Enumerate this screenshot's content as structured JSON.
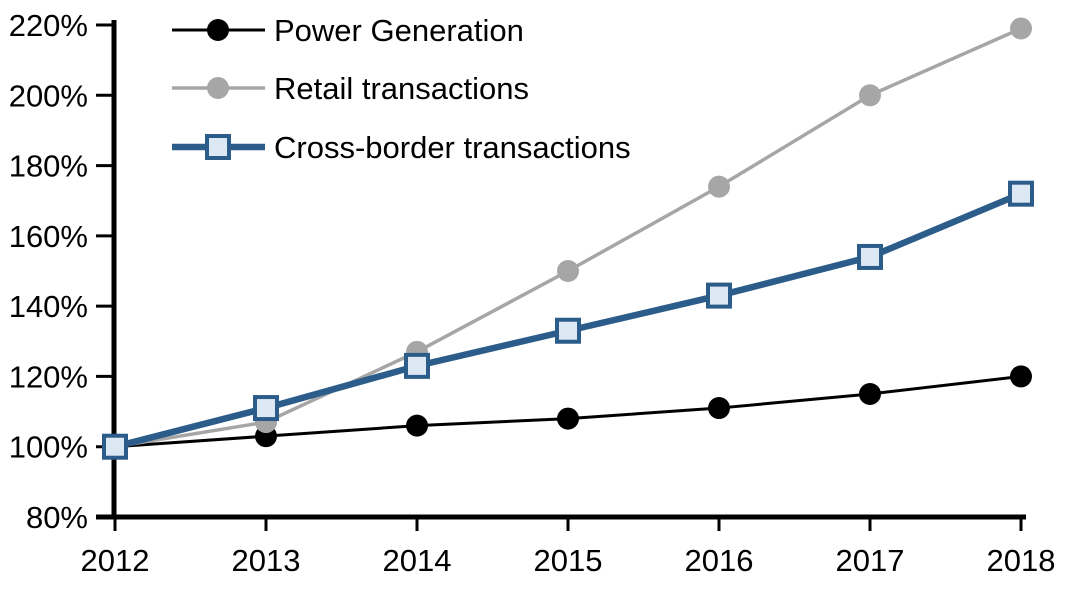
{
  "chart_data": {
    "type": "line",
    "title": "",
    "unit": "percent, indexed (2012 = 100%)",
    "x": [
      2012,
      2013,
      2014,
      2015,
      2016,
      2017,
      2018
    ],
    "x_tick_labels": [
      "2012",
      "2013",
      "2014",
      "2015",
      "2016",
      "2017",
      "2018"
    ],
    "y_axis": {
      "min": 80,
      "max": 220,
      "step": 20,
      "tick_labels": [
        "80%",
        "100%",
        "120%",
        "140%",
        "160%",
        "180%",
        "200%",
        "220%"
      ]
    },
    "grid": false,
    "legend_position": "top-left-inside",
    "axis_color": "#000000",
    "background_color": "#ffffff",
    "series": [
      {
        "name": "Power Generation",
        "color": "#000000",
        "marker": "circle",
        "marker_fill": "#000000",
        "line_width": 3,
        "values": [
          100,
          103,
          106,
          108,
          111,
          115,
          120
        ]
      },
      {
        "name": "Retail transactions",
        "color": "#A6A6A6",
        "marker": "circle",
        "marker_fill": "#A6A6A6",
        "line_width": 3.5,
        "values": [
          100,
          107,
          127,
          150,
          174,
          200,
          219
        ]
      },
      {
        "name": "Cross-border transactions",
        "color": "#2C5D8A",
        "marker": "square",
        "marker_fill": "#DCE8F4",
        "line_width": 6.5,
        "values": [
          100,
          111,
          123,
          133,
          143,
          154,
          172
        ]
      }
    ]
  }
}
